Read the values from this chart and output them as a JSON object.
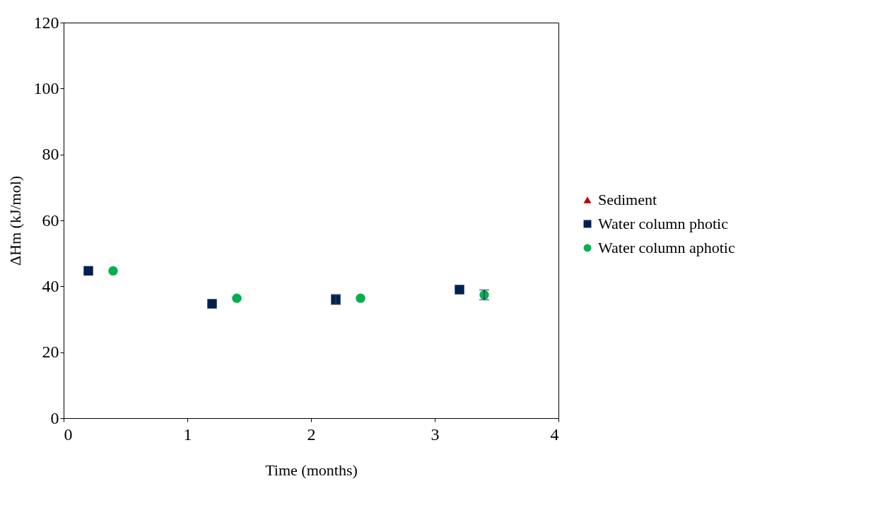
{
  "chart_data": {
    "type": "scatter",
    "xlabel": "Time (months)",
    "ylabel": "ΔHm (kJ/mol)",
    "xlim": [
      0,
      4
    ],
    "xticks": [
      0,
      1,
      2,
      3,
      4
    ],
    "ylim": [
      0,
      120
    ],
    "yticks": [
      0,
      20,
      40,
      60,
      80,
      100,
      120
    ],
    "grid": false,
    "legend": "right",
    "series": [
      {
        "name": "Sediment",
        "color": "#c00000",
        "marker": "triangle",
        "values": [
          null,
          null,
          null,
          null
        ]
      },
      {
        "name": "Water column photic",
        "color": "#002050",
        "marker": "square",
        "x": [
          0.2,
          1.2,
          2.2,
          3.2
        ],
        "values": [
          44.7,
          34.7,
          36.0,
          39.0
        ],
        "errors": [
          null,
          null,
          1.5,
          null
        ]
      },
      {
        "name": "Water column aphotic",
        "color": "#00b050",
        "marker": "circle",
        "x": [
          0.4,
          1.4,
          2.4,
          3.4
        ],
        "values": [
          44.7,
          36.4,
          36.4,
          37.4
        ],
        "errors": [
          null,
          null,
          null,
          1.5
        ]
      }
    ]
  }
}
